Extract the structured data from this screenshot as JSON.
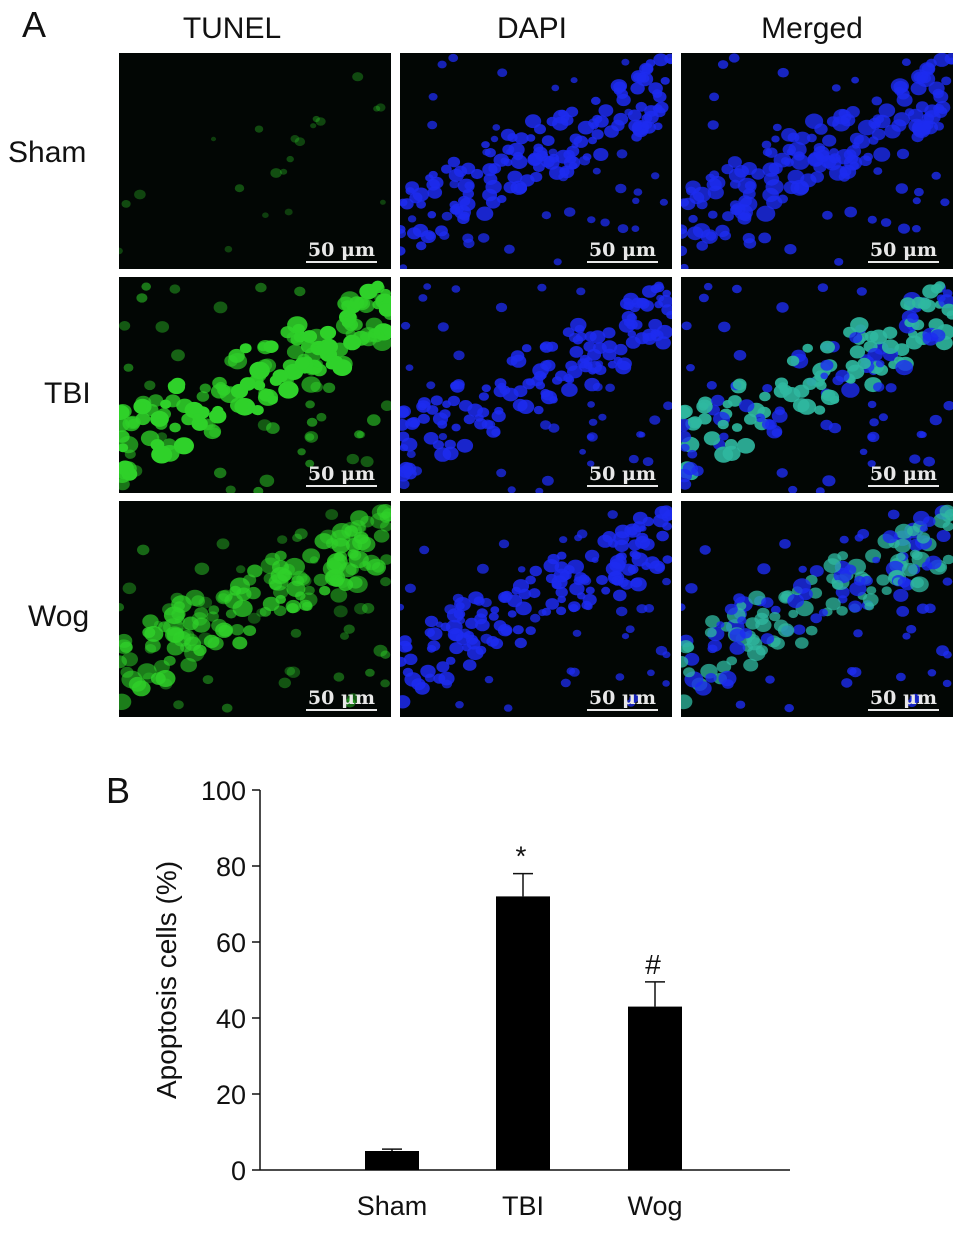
{
  "panelA": {
    "letter": "A",
    "columns": [
      "TUNEL",
      "DAPI",
      "Merged"
    ],
    "rows": [
      "Sham",
      "TBI",
      "Wog"
    ],
    "scale_bar": "50 μm",
    "colors": {
      "TUNEL": "#2fd12a",
      "DAPI": "#1d2cf0",
      "background": "#020604"
    }
  },
  "panelB": {
    "letter": "B"
  },
  "chart_data": {
    "type": "bar",
    "categories": [
      "Sham",
      "TBI",
      "Wog"
    ],
    "values": [
      5,
      72,
      43
    ],
    "errors": [
      0.5,
      6,
      6.5
    ],
    "annotations": [
      "",
      "*",
      "#"
    ],
    "ylabel": "Apoptosis cells (%)",
    "xlabel": "",
    "ylim": [
      0,
      100
    ],
    "yticks": [
      0,
      20,
      40,
      60,
      80,
      100
    ],
    "bar_color": "#000000",
    "grid": false
  }
}
